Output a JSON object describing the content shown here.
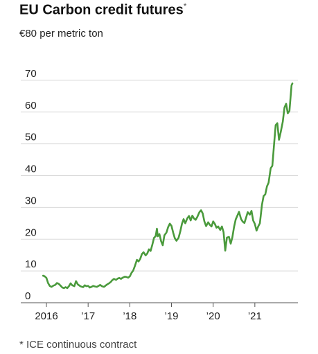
{
  "chart_data": {
    "type": "line",
    "title": "EU Carbon credit futures",
    "title_mark": "*",
    "subtitle": "€80 per metric ton",
    "footnote": "* ICE continuous contract",
    "ylim": [
      0,
      80
    ],
    "y_ticks": [
      0,
      10,
      20,
      30,
      40,
      50,
      60,
      70
    ],
    "y_tick_labels": [
      "0",
      "10",
      "20",
      "30",
      "40",
      "50",
      "60",
      "70"
    ],
    "x_range": [
      2015.8,
      2021.95
    ],
    "x_ticks": [
      2016,
      2017,
      2018,
      2019,
      2020,
      2021
    ],
    "x_tick_labels": [
      "2016",
      "’17",
      "’18",
      "’19",
      "’20",
      "’21"
    ],
    "grid": true,
    "line_color": "#4a9a3c",
    "series": [
      {
        "x": [
          2015.92,
          2015.96,
          2016.0,
          2016.04,
          2016.08,
          2016.12,
          2016.17,
          2016.21,
          2016.25,
          2016.29,
          2016.33,
          2016.38,
          2016.42,
          2016.46,
          2016.5,
          2016.54,
          2016.58,
          2016.62,
          2016.67,
          2016.71,
          2016.75,
          2016.79,
          2016.83,
          2016.88,
          2016.92,
          2016.96,
          2017.0,
          2017.04,
          2017.08,
          2017.12,
          2017.17,
          2017.21,
          2017.25,
          2017.29,
          2017.33,
          2017.38,
          2017.42,
          2017.46,
          2017.5,
          2017.54,
          2017.58,
          2017.62,
          2017.67,
          2017.71,
          2017.75,
          2017.79,
          2017.83,
          2017.88,
          2017.92,
          2017.96,
          2018.0,
          2018.04,
          2018.08,
          2018.12,
          2018.17,
          2018.21,
          2018.25,
          2018.29,
          2018.33,
          2018.38,
          2018.42,
          2018.46,
          2018.5,
          2018.54,
          2018.58,
          2018.62,
          2018.65,
          2018.67,
          2018.71,
          2018.75,
          2018.79,
          2018.83,
          2018.88,
          2018.92,
          2018.96,
          2019.0,
          2019.04,
          2019.08,
          2019.12,
          2019.17,
          2019.21,
          2019.25,
          2019.29,
          2019.33,
          2019.38,
          2019.42,
          2019.46,
          2019.5,
          2019.54,
          2019.58,
          2019.62,
          2019.67,
          2019.71,
          2019.75,
          2019.79,
          2019.83,
          2019.88,
          2019.92,
          2019.96,
          2020.0,
          2020.04,
          2020.08,
          2020.12,
          2020.17,
          2020.21,
          2020.25,
          2020.29,
          2020.33,
          2020.38,
          2020.42,
          2020.46,
          2020.5,
          2020.54,
          2020.58,
          2020.62,
          2020.67,
          2020.71,
          2020.75,
          2020.79,
          2020.83,
          2020.88,
          2020.92,
          2020.96,
          2021.0,
          2021.04,
          2021.08,
          2021.12,
          2021.17,
          2021.21,
          2021.25,
          2021.29,
          2021.33,
          2021.38,
          2021.42,
          2021.46,
          2021.5,
          2021.54,
          2021.58,
          2021.62,
          2021.67,
          2021.71,
          2021.75,
          2021.79,
          2021.83,
          2021.88,
          2021.9
        ],
        "values": [
          8.5,
          8.3,
          7.8,
          6.2,
          5.3,
          5.0,
          5.4,
          5.6,
          6.2,
          6.0,
          5.5,
          4.8,
          4.6,
          4.9,
          4.6,
          5.2,
          6.1,
          5.5,
          5.2,
          6.8,
          5.8,
          5.4,
          5.1,
          4.9,
          5.5,
          5.2,
          5.3,
          4.8,
          5.0,
          5.3,
          5.1,
          5.0,
          5.3,
          5.6,
          5.2,
          5.0,
          5.4,
          5.8,
          6.1,
          6.5,
          7.1,
          7.5,
          7.2,
          7.6,
          7.8,
          7.5,
          7.9,
          8.2,
          8.1,
          7.9,
          8.3,
          9.4,
          10.1,
          11.5,
          13.5,
          13.0,
          13.8,
          15.3,
          15.9,
          14.9,
          15.5,
          16.8,
          16.3,
          18.2,
          20.4,
          21.0,
          23.3,
          20.9,
          21.6,
          19.4,
          18.1,
          21.2,
          22.1,
          23.8,
          24.9,
          24.2,
          22.1,
          20.3,
          19.5,
          20.4,
          22.4,
          24.8,
          26.3,
          25.0,
          26.6,
          27.3,
          25.9,
          27.4,
          26.5,
          26.1,
          27.0,
          28.5,
          29.1,
          28.1,
          25.6,
          24.1,
          25.3,
          24.5,
          24.0,
          25.6,
          24.8,
          23.6,
          24.0,
          22.9,
          24.0,
          22.2,
          16.4,
          20.5,
          20.7,
          18.6,
          20.6,
          23.8,
          26.2,
          27.4,
          28.6,
          26.3,
          25.5,
          25.1,
          26.8,
          28.5,
          27.7,
          28.9,
          25.9,
          24.8,
          22.7,
          24.0,
          25.0,
          30.8,
          33.6,
          34.1,
          36.6,
          37.8,
          42.3,
          43.1,
          49.6,
          55.9,
          56.5,
          51.3,
          53.6,
          57.0,
          61.4,
          62.6,
          59.6,
          60.4,
          68.4,
          69.0
        ]
      }
    ]
  }
}
